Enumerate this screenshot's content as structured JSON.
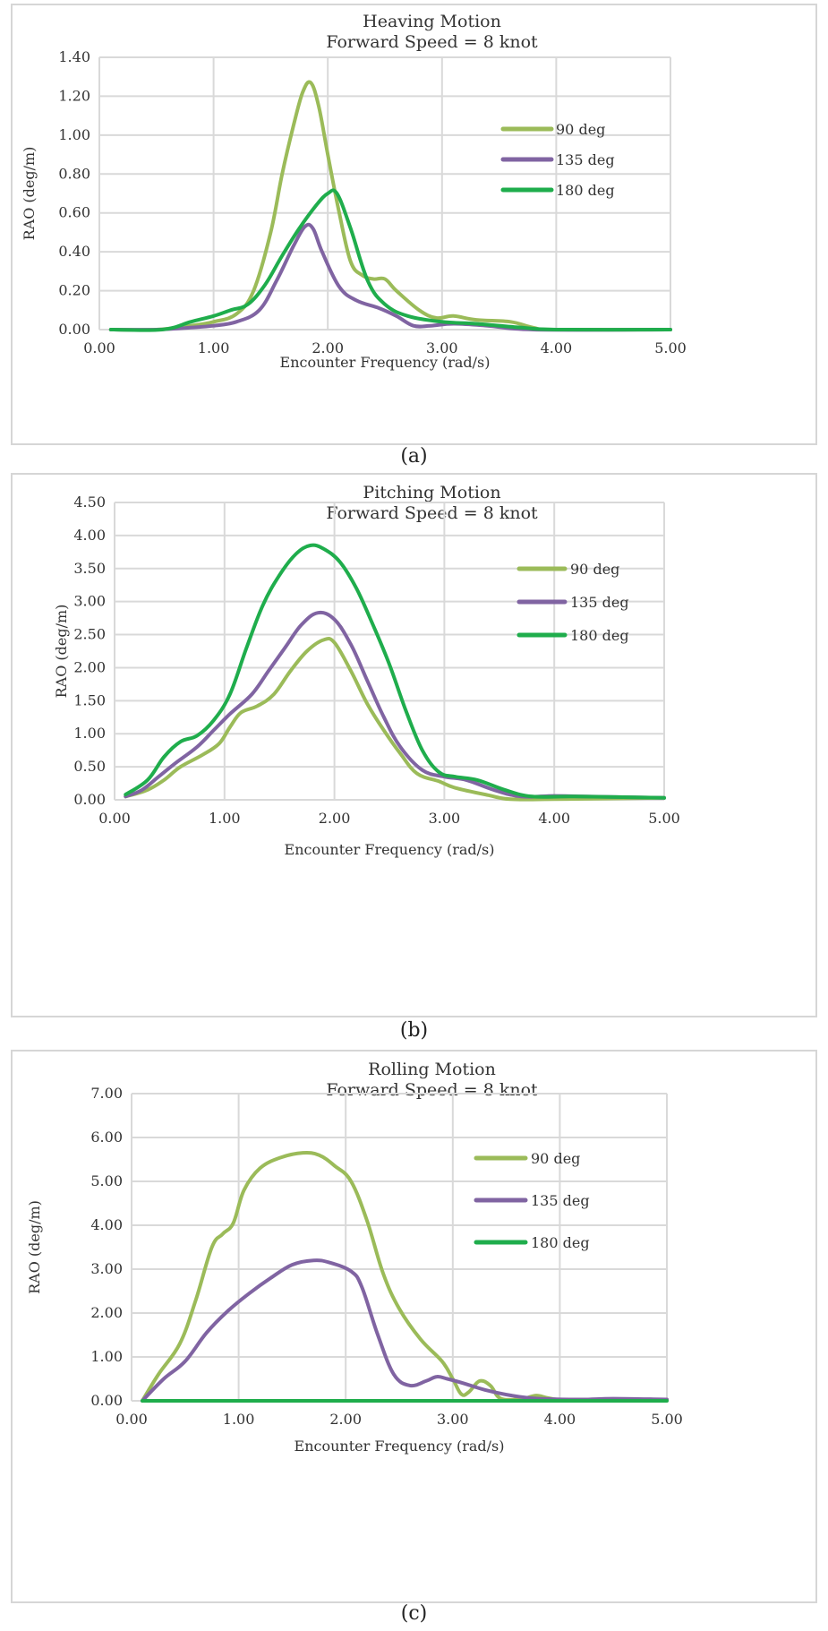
{
  "figures": [
    {
      "caption": "(a)"
    },
    {
      "caption": "(b)"
    },
    {
      "caption": "(c)"
    }
  ],
  "colors": {
    "90deg": "#9bbb59",
    "135deg": "#8064a2",
    "180deg": "#1fad4c"
  },
  "chart_data": [
    {
      "type": "line",
      "title": "Heaving Motion",
      "subtitle": "Forward Speed = 8 knot",
      "xlabel": "Encounter Frequency (rad/s)",
      "ylabel": "RAO (deg/m)",
      "xlim": [
        0,
        5
      ],
      "ylim": [
        0,
        1.4
      ],
      "xticks": [
        "0.00",
        "1.00",
        "2.00",
        "3.00",
        "4.00",
        "5.00"
      ],
      "yticks": [
        "0.00",
        "0.20",
        "0.40",
        "0.60",
        "0.80",
        "1.00",
        "1.20",
        "1.40"
      ],
      "legend_position": "right",
      "series": [
        {
          "name": "90 deg",
          "color": "#9bbb59",
          "points": [
            [
              0.1,
              0
            ],
            [
              0.5,
              0
            ],
            [
              0.8,
              0.02
            ],
            [
              1.0,
              0.04
            ],
            [
              1.2,
              0.08
            ],
            [
              1.35,
              0.2
            ],
            [
              1.5,
              0.5
            ],
            [
              1.6,
              0.8
            ],
            [
              1.7,
              1.05
            ],
            [
              1.78,
              1.22
            ],
            [
              1.85,
              1.27
            ],
            [
              1.92,
              1.15
            ],
            [
              2.0,
              0.9
            ],
            [
              2.1,
              0.6
            ],
            [
              2.2,
              0.35
            ],
            [
              2.3,
              0.28
            ],
            [
              2.4,
              0.26
            ],
            [
              2.5,
              0.26
            ],
            [
              2.6,
              0.2
            ],
            [
              2.8,
              0.1
            ],
            [
              2.95,
              0.06
            ],
            [
              3.1,
              0.07
            ],
            [
              3.3,
              0.05
            ],
            [
              3.6,
              0.04
            ],
            [
              3.8,
              0.01
            ],
            [
              4.0,
              0
            ],
            [
              5.0,
              0
            ]
          ]
        },
        {
          "name": "135 deg",
          "color": "#8064a2",
          "points": [
            [
              0.1,
              0
            ],
            [
              0.5,
              0
            ],
            [
              0.8,
              0.01
            ],
            [
              1.0,
              0.02
            ],
            [
              1.2,
              0.04
            ],
            [
              1.4,
              0.1
            ],
            [
              1.55,
              0.25
            ],
            [
              1.7,
              0.43
            ],
            [
              1.8,
              0.53
            ],
            [
              1.87,
              0.52
            ],
            [
              1.95,
              0.4
            ],
            [
              2.1,
              0.22
            ],
            [
              2.25,
              0.15
            ],
            [
              2.45,
              0.11
            ],
            [
              2.6,
              0.07
            ],
            [
              2.75,
              0.02
            ],
            [
              2.9,
              0.02
            ],
            [
              3.1,
              0.03
            ],
            [
              3.4,
              0.02
            ],
            [
              3.8,
              0
            ],
            [
              5.0,
              0
            ]
          ]
        },
        {
          "name": "180 deg",
          "color": "#1fad4c",
          "points": [
            [
              0.1,
              0
            ],
            [
              0.55,
              0
            ],
            [
              0.8,
              0.04
            ],
            [
              1.0,
              0.07
            ],
            [
              1.15,
              0.1
            ],
            [
              1.3,
              0.13
            ],
            [
              1.45,
              0.23
            ],
            [
              1.6,
              0.38
            ],
            [
              1.75,
              0.52
            ],
            [
              1.9,
              0.64
            ],
            [
              2.0,
              0.7
            ],
            [
              2.08,
              0.7
            ],
            [
              2.2,
              0.52
            ],
            [
              2.35,
              0.25
            ],
            [
              2.5,
              0.13
            ],
            [
              2.7,
              0.07
            ],
            [
              3.0,
              0.04
            ],
            [
              3.3,
              0.03
            ],
            [
              3.7,
              0.01
            ],
            [
              4.0,
              0
            ],
            [
              5.0,
              0
            ]
          ]
        }
      ]
    },
    {
      "type": "line",
      "title": "Pitching Motion",
      "subtitle": "Forward Speed = 8 knot",
      "xlabel": "Encounter Frequency (rad/s)",
      "ylabel": "RAO (deg/m)",
      "xlim": [
        0,
        5
      ],
      "ylim": [
        0,
        4.5
      ],
      "xticks": [
        "0.00",
        "1.00",
        "2.00",
        "3.00",
        "4.00",
        "5.00"
      ],
      "yticks": [
        "0.00",
        "0.50",
        "1.00",
        "1.50",
        "2.00",
        "2.50",
        "3.00",
        "3.50",
        "4.00",
        "4.50"
      ],
      "legend_position": "right",
      "series": [
        {
          "name": "90 deg",
          "color": "#9bbb59",
          "points": [
            [
              0.1,
              0.05
            ],
            [
              0.3,
              0.15
            ],
            [
              0.45,
              0.3
            ],
            [
              0.6,
              0.5
            ],
            [
              0.8,
              0.68
            ],
            [
              0.95,
              0.85
            ],
            [
              1.05,
              1.1
            ],
            [
              1.15,
              1.32
            ],
            [
              1.3,
              1.42
            ],
            [
              1.45,
              1.6
            ],
            [
              1.6,
              1.95
            ],
            [
              1.75,
              2.25
            ],
            [
              1.9,
              2.42
            ],
            [
              2.0,
              2.38
            ],
            [
              2.15,
              1.95
            ],
            [
              2.3,
              1.45
            ],
            [
              2.45,
              1.05
            ],
            [
              2.6,
              0.7
            ],
            [
              2.75,
              0.4
            ],
            [
              2.95,
              0.28
            ],
            [
              3.1,
              0.18
            ],
            [
              3.4,
              0.07
            ],
            [
              3.6,
              0.01
            ],
            [
              4.0,
              0.01
            ],
            [
              5.0,
              0.03
            ]
          ]
        },
        {
          "name": "135 deg",
          "color": "#8064a2",
          "points": [
            [
              0.1,
              0.05
            ],
            [
              0.25,
              0.15
            ],
            [
              0.4,
              0.35
            ],
            [
              0.55,
              0.55
            ],
            [
              0.75,
              0.8
            ],
            [
              0.9,
              1.05
            ],
            [
              1.05,
              1.3
            ],
            [
              1.25,
              1.6
            ],
            [
              1.4,
              1.95
            ],
            [
              1.55,
              2.3
            ],
            [
              1.7,
              2.65
            ],
            [
              1.85,
              2.83
            ],
            [
              2.0,
              2.73
            ],
            [
              2.15,
              2.35
            ],
            [
              2.3,
              1.8
            ],
            [
              2.45,
              1.25
            ],
            [
              2.6,
              0.8
            ],
            [
              2.8,
              0.45
            ],
            [
              3.0,
              0.35
            ],
            [
              3.2,
              0.3
            ],
            [
              3.45,
              0.15
            ],
            [
              3.7,
              0.05
            ],
            [
              4.0,
              0.06
            ],
            [
              4.3,
              0.05
            ],
            [
              5.0,
              0.03
            ]
          ]
        },
        {
          "name": "180 deg",
          "color": "#1fad4c",
          "points": [
            [
              0.1,
              0.08
            ],
            [
              0.3,
              0.3
            ],
            [
              0.45,
              0.65
            ],
            [
              0.6,
              0.88
            ],
            [
              0.75,
              0.97
            ],
            [
              0.9,
              1.2
            ],
            [
              1.05,
              1.6
            ],
            [
              1.2,
              2.3
            ],
            [
              1.35,
              2.95
            ],
            [
              1.5,
              3.4
            ],
            [
              1.65,
              3.72
            ],
            [
              1.78,
              3.85
            ],
            [
              1.9,
              3.8
            ],
            [
              2.05,
              3.6
            ],
            [
              2.2,
              3.2
            ],
            [
              2.35,
              2.65
            ],
            [
              2.5,
              2.05
            ],
            [
              2.65,
              1.35
            ],
            [
              2.8,
              0.75
            ],
            [
              2.95,
              0.42
            ],
            [
              3.1,
              0.35
            ],
            [
              3.3,
              0.3
            ],
            [
              3.55,
              0.15
            ],
            [
              3.8,
              0.05
            ],
            [
              4.2,
              0.05
            ],
            [
              5.0,
              0.03
            ]
          ]
        }
      ]
    },
    {
      "type": "line",
      "title": "Rolling Motion",
      "subtitle": "Forward Speed = 8 knot",
      "xlabel": "Encounter Frequency (rad/s)",
      "ylabel": "RAO (deg/m)",
      "xlim": [
        0,
        5
      ],
      "ylim": [
        0,
        7
      ],
      "xticks": [
        "0.00",
        "1.00",
        "2.00",
        "3.00",
        "4.00",
        "5.00"
      ],
      "yticks": [
        "0.00",
        "1.00",
        "2.00",
        "3.00",
        "4.00",
        "5.00",
        "6.00",
        "7.00"
      ],
      "legend_position": "right",
      "series": [
        {
          "name": "90 deg",
          "color": "#9bbb59",
          "points": [
            [
              0.1,
              0
            ],
            [
              0.25,
              0.6
            ],
            [
              0.45,
              1.3
            ],
            [
              0.6,
              2.3
            ],
            [
              0.75,
              3.5
            ],
            [
              0.85,
              3.8
            ],
            [
              0.95,
              4.05
            ],
            [
              1.05,
              4.8
            ],
            [
              1.2,
              5.3
            ],
            [
              1.4,
              5.55
            ],
            [
              1.6,
              5.65
            ],
            [
              1.75,
              5.6
            ],
            [
              1.9,
              5.35
            ],
            [
              2.05,
              5.0
            ],
            [
              2.2,
              4.1
            ],
            [
              2.35,
              2.9
            ],
            [
              2.5,
              2.1
            ],
            [
              2.7,
              1.4
            ],
            [
              2.9,
              0.9
            ],
            [
              3.0,
              0.5
            ],
            [
              3.08,
              0.15
            ],
            [
              3.15,
              0.2
            ],
            [
              3.25,
              0.45
            ],
            [
              3.35,
              0.35
            ],
            [
              3.45,
              0.05
            ],
            [
              3.65,
              0.05
            ],
            [
              3.78,
              0.12
            ],
            [
              3.9,
              0.06
            ],
            [
              4.1,
              0.02
            ],
            [
              5.0,
              0.02
            ]
          ]
        },
        {
          "name": "135 deg",
          "color": "#8064a2",
          "points": [
            [
              0.1,
              0
            ],
            [
              0.3,
              0.5
            ],
            [
              0.5,
              0.9
            ],
            [
              0.7,
              1.55
            ],
            [
              0.9,
              2.05
            ],
            [
              1.1,
              2.45
            ],
            [
              1.3,
              2.8
            ],
            [
              1.5,
              3.1
            ],
            [
              1.7,
              3.2
            ],
            [
              1.85,
              3.15
            ],
            [
              2.05,
              2.95
            ],
            [
              2.15,
              2.6
            ],
            [
              2.3,
              1.5
            ],
            [
              2.45,
              0.6
            ],
            [
              2.6,
              0.35
            ],
            [
              2.75,
              0.45
            ],
            [
              2.85,
              0.55
            ],
            [
              2.95,
              0.5
            ],
            [
              3.1,
              0.4
            ],
            [
              3.3,
              0.25
            ],
            [
              3.55,
              0.12
            ],
            [
              3.8,
              0.05
            ],
            [
              4.2,
              0.03
            ],
            [
              4.5,
              0.05
            ],
            [
              5.0,
              0.03
            ]
          ]
        },
        {
          "name": "180 deg",
          "color": "#1fad4c",
          "points": [
            [
              0.1,
              0
            ],
            [
              5.0,
              0
            ]
          ]
        }
      ]
    }
  ]
}
